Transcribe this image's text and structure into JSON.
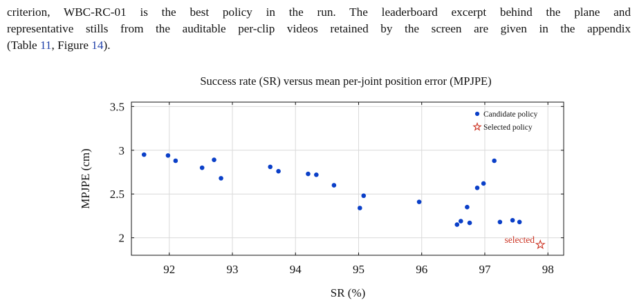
{
  "paragraph": {
    "line1": "criterion, WBC-RC-01 is the best policy in the run. The leaderboard excerpt behind the plane and",
    "line2": "representative stills from the auditable per-clip videos retained by the screen are given in the appendix",
    "line3_open": "(Table ",
    "line3_table_ref": "11",
    "line3_sep": ", Figure ",
    "line3_figure_ref": "14",
    "line3_close": ")."
  },
  "chart_data": {
    "type": "scatter",
    "title": "Success rate (SR) versus mean per-joint position error (MPJPE)",
    "xlabel": "SR (%)",
    "ylabel": "MPJPE (cm)",
    "xlim": [
      91.4,
      98.25
    ],
    "ylim": [
      1.8,
      3.55
    ],
    "xticks": [
      92,
      93,
      94,
      95,
      96,
      97,
      98
    ],
    "yticks": [
      2,
      2.5,
      3,
      3.5
    ],
    "ytick_labels": [
      "2",
      "2.5",
      "3",
      "3.5"
    ],
    "grid": true,
    "legend_position": "top-right",
    "colors": {
      "candidate": "#0a3fc8",
      "selected": "#cc3322",
      "grid": "#d9d9d9",
      "axis": "#111111"
    },
    "series": [
      {
        "name": "Candidate policy",
        "marker": "circle",
        "x": [
          91.6,
          91.98,
          92.1,
          92.52,
          92.71,
          92.82,
          93.6,
          93.73,
          94.2,
          94.33,
          94.61,
          95.02,
          95.08,
          95.96,
          96.56,
          96.62,
          96.72,
          96.76,
          96.88,
          96.98,
          97.15,
          97.24,
          97.44,
          97.55
        ],
        "y": [
          2.95,
          2.94,
          2.88,
          2.8,
          2.89,
          2.68,
          2.81,
          2.76,
          2.73,
          2.72,
          2.6,
          2.34,
          2.48,
          2.41,
          2.15,
          2.19,
          2.35,
          2.17,
          2.57,
          2.62,
          2.88,
          2.18,
          2.2,
          2.18
        ]
      },
      {
        "name": "Selected policy",
        "marker": "star",
        "x": [
          97.88
        ],
        "y": [
          1.92
        ]
      }
    ],
    "annotations": [
      {
        "text": "selected",
        "x": 97.88,
        "y": 1.92
      }
    ]
  }
}
